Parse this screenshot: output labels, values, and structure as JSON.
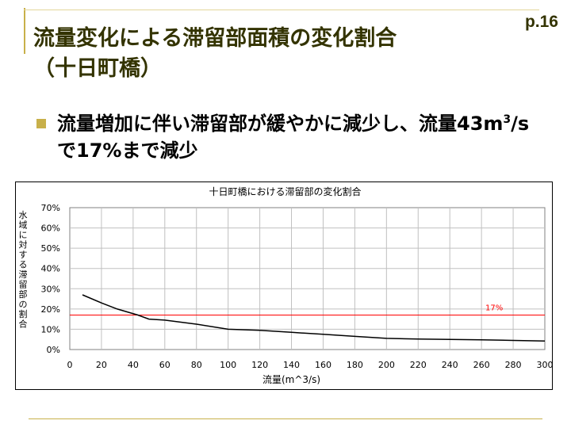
{
  "page_number": "p.16",
  "title_line1": "流量変化による滞留部面積の変化割合",
  "title_line2": "（十日町橋）",
  "bullet": {
    "part1": "流量増加に伴い滞留部が緩やかに減少し、流量43m",
    "sup": "3",
    "part2": "/sで17%まで減少"
  },
  "chart_data": {
    "type": "line",
    "title": "十日町橋における滞留部の変化割合",
    "xlabel": "流量(m^3/s)",
    "ylabel": "水域に対する滞留部の割合",
    "xlim": [
      0,
      300
    ],
    "ylim": [
      0,
      0.7
    ],
    "x_ticks": [
      0,
      20,
      40,
      60,
      80,
      100,
      120,
      140,
      160,
      180,
      200,
      220,
      240,
      260,
      280,
      300
    ],
    "y_ticks": [
      0,
      0.1,
      0.2,
      0.3,
      0.4,
      0.5,
      0.6,
      0.7
    ],
    "y_tick_labels": [
      "0%",
      "10%",
      "20%",
      "30%",
      "40%",
      "50%",
      "60%",
      "70%"
    ],
    "grid": true,
    "series": [
      {
        "color": "#000000",
        "x": [
          8,
          20,
          30,
          43,
          50,
          60,
          80,
          100,
          120,
          140,
          160,
          180,
          200,
          220,
          240,
          260,
          280,
          300
        ],
        "y": [
          0.27,
          0.23,
          0.2,
          0.17,
          0.15,
          0.145,
          0.125,
          0.1,
          0.095,
          0.085,
          0.075,
          0.065,
          0.055,
          0.052,
          0.05,
          0.048,
          0.045,
          0.042
        ]
      }
    ],
    "reference_line": {
      "y": 0.17,
      "label": "17%",
      "color": "#ff0000"
    }
  }
}
